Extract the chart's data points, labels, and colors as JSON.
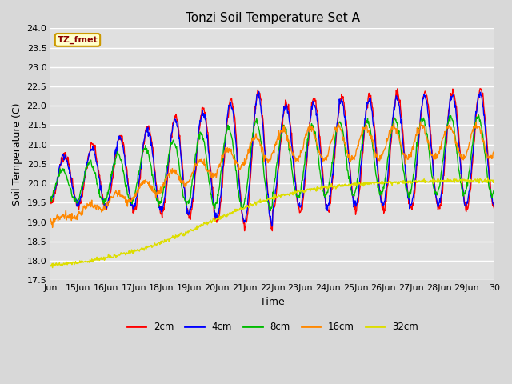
{
  "title": "Tonzi Soil Temperature Set A",
  "xlabel": "Time",
  "ylabel": "Soil Temperature (C)",
  "legend_label": "TZ_fmet",
  "series_labels": [
    "2cm",
    "4cm",
    "8cm",
    "16cm",
    "32cm"
  ],
  "series_colors": [
    "#ff0000",
    "#0000ff",
    "#00bb00",
    "#ff8800",
    "#dddd00"
  ],
  "ylim": [
    17.5,
    24.0
  ],
  "yticks": [
    17.5,
    18.0,
    18.5,
    19.0,
    19.5,
    20.0,
    20.5,
    21.0,
    21.5,
    22.0,
    22.5,
    23.0,
    23.5,
    24.0
  ],
  "fig_bg": "#d8d8d8",
  "plot_bg": "#e0e0e0",
  "title_fontsize": 11,
  "axis_fontsize": 9,
  "tick_fontsize": 8,
  "n_points": 960,
  "x_start": 14.0,
  "x_end": 30.0,
  "xtick_labels": [
    "Jun",
    "15Jun",
    "16Jun",
    "17Jun",
    "18Jun",
    "19Jun",
    "20Jun",
    "21Jun",
    "22Jun",
    "23Jun",
    "24Jun",
    "25Jun",
    "26Jun",
    "27Jun",
    "28Jun",
    "29Jun",
    "30"
  ],
  "xtick_positions": [
    14.0,
    15.0,
    16.0,
    17.0,
    18.0,
    19.0,
    20.0,
    21.0,
    22.0,
    23.0,
    24.0,
    25.0,
    26.0,
    27.0,
    28.0,
    29.0,
    30.0
  ]
}
